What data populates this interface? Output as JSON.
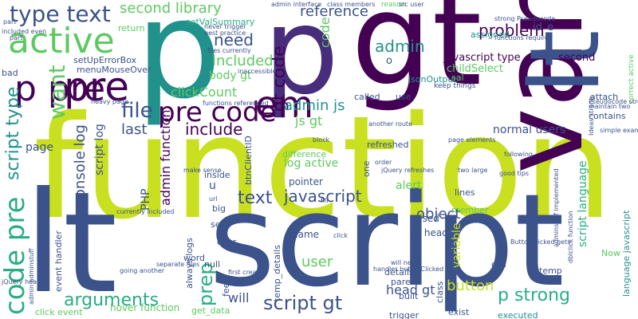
{
  "word_cloud": {
    "background": "#ffffff",
    "palette": [
      "#440154",
      "#3b528b",
      "#21918c",
      "#5ec962",
      "#c8e020",
      "#fde725",
      "#2c728e",
      "#472d7b",
      "#28ae80",
      "#addc30"
    ],
    "big_words": {
      "function": "function",
      "script": "script",
      "lt": "lt",
      "p1": "p",
      "p2": "p",
      "gt": "gt",
      "var": "var",
      "lt2": "lt"
    },
    "words": [
      "type text",
      "active",
      "p pre",
      "pre",
      "code pre",
      "want",
      "file",
      "pre code",
      "em",
      "need",
      "admin",
      "problem",
      "gt code",
      "reference",
      "second library",
      "setValSummary",
      "setUpErrorBox",
      "menuMouseOver",
      "return",
      "included",
      "body gt",
      "clickCount",
      "console log",
      "last",
      "include",
      "admin js",
      "js gt",
      "javascript type",
      "second",
      "jsonOutput",
      "childSelect",
      "normal users",
      "page",
      "script log",
      "admin function",
      "PHP",
      "arguments",
      "text",
      "javascript",
      "prep",
      "user",
      "will",
      "script gt",
      "object",
      "head gt",
      "alert",
      "log active",
      "pointer",
      "name",
      "used",
      "lt head",
      "variable",
      "button",
      "p strong",
      "script language",
      "language javascript",
      "event handler",
      "always logs",
      "temp_details",
      "parent",
      "btnClientID",
      "difference",
      "hover function",
      "get_data",
      "built",
      "call",
      "Now",
      "temp",
      "lines",
      "attach",
      "contains",
      "keep things",
      "refreshed",
      "member",
      "called",
      "use",
      "sal",
      "assigned",
      "reason",
      "files currently",
      "inaccessible",
      "first created",
      "exist",
      "executed",
      "click event",
      "correct active",
      "null",
      "char",
      "set",
      "word",
      "feel",
      "big",
      "inside",
      "make sense",
      "heavy page",
      "bad",
      "part",
      "included even",
      "Ideas strong",
      "Pseudocode strong",
      "maintain two",
      "functions referenced",
      "trigger",
      "details",
      "order",
      "class",
      "two large",
      "good tips",
      "simple example",
      "following",
      "another route",
      "jQuery refreshes",
      "page elements",
      "admin interface",
      "class members",
      "src user",
      "never trigger",
      "best practice",
      "currently included",
      "going another",
      "separate files",
      "dblclick function",
      "admin adminstuff",
      "jQuery heavy",
      "functions require",
      "adminstuff implemented",
      "will never",
      "handler buttonClicked",
      "ButtonClicked gets",
      "strong Pseudocode",
      "fill",
      "u",
      "id",
      "one",
      "e",
      "o",
      "url",
      "block",
      "part",
      "click",
      "code",
      "script type"
    ]
  }
}
